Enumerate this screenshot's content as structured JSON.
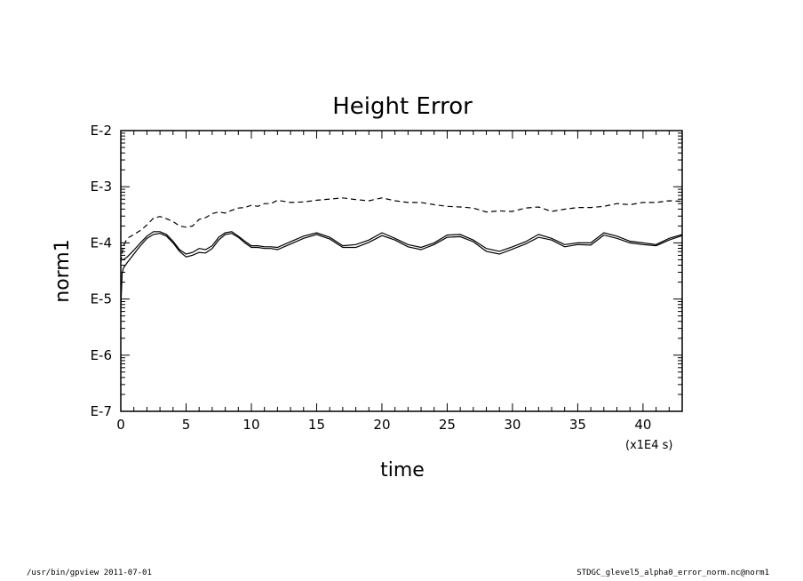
{
  "chart_data": {
    "type": "line",
    "title": "Height Error",
    "xlabel": "time",
    "ylabel": "norm1",
    "x_unit": "(x1E4 s)",
    "xlim": [
      0,
      43
    ],
    "ylim": [
      -7,
      -2
    ],
    "y_scale": "log",
    "x_ticks": [
      0,
      5,
      10,
      15,
      20,
      25,
      30,
      35,
      40
    ],
    "y_ticks": [
      -7,
      -6,
      -5,
      -4,
      -3,
      -2
    ],
    "y_tick_labels": [
      "E-7",
      "E-6",
      "E-5",
      "E-4",
      "E-3",
      "E-2"
    ],
    "grid": false,
    "series": [
      {
        "style": "dashed",
        "x": [
          0,
          0.2,
          0.5,
          1,
          1.5,
          2,
          2.5,
          3,
          3.5,
          4,
          4.5,
          5,
          5.5,
          6,
          6.5,
          7,
          7.5,
          8,
          8.5,
          9,
          9.5,
          10,
          10.5,
          11,
          11.5,
          12,
          13,
          14,
          15,
          16,
          17,
          18,
          19,
          20,
          21,
          22,
          23,
          24,
          25,
          26,
          27,
          28,
          29,
          30,
          31,
          32,
          33,
          34,
          35,
          36,
          37,
          38,
          39,
          40,
          41,
          42,
          43
        ],
        "y": [
          -4.35,
          -4.05,
          -3.92,
          -3.85,
          -3.78,
          -3.68,
          -3.56,
          -3.53,
          -3.57,
          -3.62,
          -3.7,
          -3.72,
          -3.7,
          -3.58,
          -3.55,
          -3.48,
          -3.45,
          -3.47,
          -3.42,
          -3.38,
          -3.37,
          -3.33,
          -3.35,
          -3.3,
          -3.3,
          -3.24,
          -3.28,
          -3.27,
          -3.24,
          -3.22,
          -3.2,
          -3.23,
          -3.25,
          -3.2,
          -3.25,
          -3.28,
          -3.28,
          -3.32,
          -3.35,
          -3.36,
          -3.38,
          -3.45,
          -3.43,
          -3.44,
          -3.38,
          -3.36,
          -3.44,
          -3.4,
          -3.37,
          -3.37,
          -3.35,
          -3.3,
          -3.32,
          -3.28,
          -3.28,
          -3.25,
          -3.26
        ]
      },
      {
        "style": "solid",
        "x": [
          0,
          0.2,
          0.5,
          1,
          1.5,
          2,
          2.5,
          3,
          3.5,
          4,
          4.5,
          5,
          5.5,
          6,
          6.5,
          7,
          7.5,
          8,
          8.5,
          9,
          9.5,
          10,
          10.5,
          11,
          11.5,
          12,
          13,
          14,
          15,
          16,
          17,
          18,
          19,
          20,
          21,
          22,
          23,
          24,
          25,
          26,
          27,
          28,
          29,
          30,
          31,
          32,
          33,
          34,
          35,
          36,
          37,
          38,
          39,
          40,
          41,
          42,
          43
        ],
        "y": [
          -4.3,
          -4.3,
          -4.25,
          -4.13,
          -4.0,
          -3.88,
          -3.8,
          -3.8,
          -3.85,
          -3.97,
          -4.12,
          -4.2,
          -4.17,
          -4.1,
          -4.12,
          -4.05,
          -3.9,
          -3.82,
          -3.8,
          -3.88,
          -3.97,
          -4.05,
          -4.05,
          -4.07,
          -4.07,
          -4.08,
          -3.98,
          -3.88,
          -3.82,
          -3.9,
          -4.05,
          -4.03,
          -3.95,
          -3.82,
          -3.92,
          -4.03,
          -4.08,
          -4.0,
          -3.86,
          -3.85,
          -3.95,
          -4.1,
          -4.15,
          -4.07,
          -3.98,
          -3.85,
          -3.92,
          -4.03,
          -4.0,
          -4.0,
          -3.82,
          -3.88,
          -3.97,
          -4.0,
          -4.03,
          -3.92,
          -3.85
        ]
      },
      {
        "style": "solid",
        "x": [
          0,
          0.1,
          0.2,
          0.5,
          1,
          1.5,
          2,
          2.5,
          3,
          3.5,
          4,
          4.5,
          5,
          5.5,
          6,
          6.5,
          7,
          7.5,
          8,
          8.5,
          9,
          9.5,
          10,
          10.5,
          11,
          11.5,
          12,
          13,
          14,
          15,
          16,
          17,
          18,
          19,
          20,
          21,
          22,
          23,
          24,
          25,
          26,
          27,
          28,
          29,
          30,
          31,
          32,
          33,
          34,
          35,
          36,
          37,
          38,
          39,
          40,
          41,
          42,
          43
        ],
        "y": [
          -5.15,
          -4.55,
          -4.45,
          -4.35,
          -4.2,
          -4.05,
          -3.92,
          -3.85,
          -3.83,
          -3.88,
          -4.0,
          -4.15,
          -4.25,
          -4.22,
          -4.17,
          -4.18,
          -4.1,
          -3.95,
          -3.85,
          -3.83,
          -3.9,
          -4.0,
          -4.08,
          -4.08,
          -4.1,
          -4.1,
          -4.12,
          -4.02,
          -3.92,
          -3.85,
          -3.93,
          -4.08,
          -4.08,
          -3.99,
          -3.87,
          -3.95,
          -4.07,
          -4.12,
          -4.03,
          -3.9,
          -3.89,
          -3.98,
          -4.15,
          -4.2,
          -4.11,
          -4.02,
          -3.9,
          -3.95,
          -4.07,
          -4.03,
          -4.04,
          -3.86,
          -3.92,
          -4.0,
          -4.03,
          -4.05,
          -3.95,
          -3.87
        ]
      }
    ]
  },
  "footer": {
    "left": "/usr/bin/gpview   2011-07-01",
    "right": "STDGC_glevel5_alpha0_error_norm.nc@norm1"
  }
}
